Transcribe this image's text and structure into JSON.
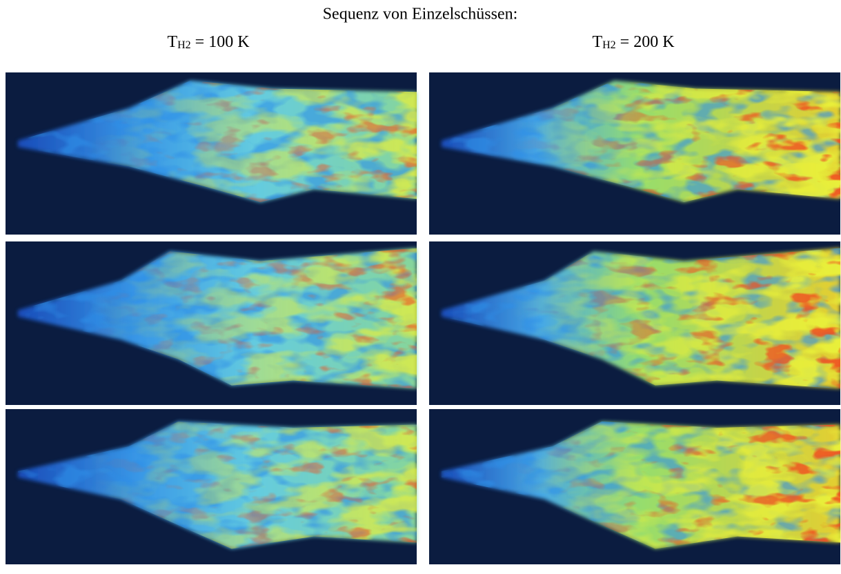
{
  "header": {
    "title": "Sequenz von Einzelschüssen:"
  },
  "columns": [
    {
      "base": "T",
      "subscript": "H2",
      "rest": " = 100 K"
    },
    {
      "base": "T",
      "subscript": "H2",
      "rest": " = 200 K"
    }
  ]
}
